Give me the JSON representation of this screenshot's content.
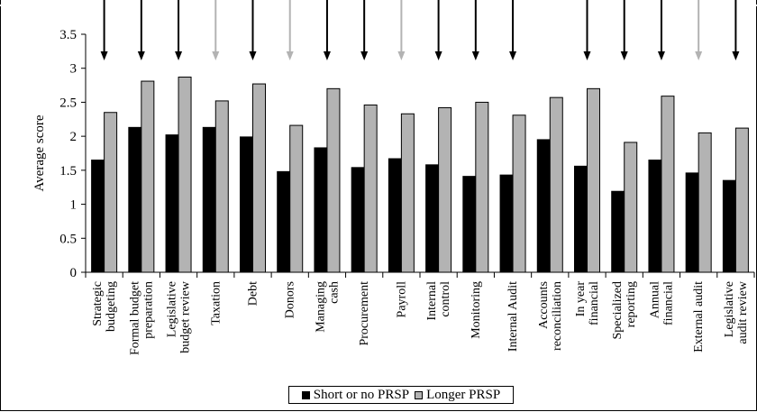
{
  "chart_data": {
    "type": "bar",
    "ylabel": "Average score",
    "xlabel": "",
    "ylim": [
      0,
      3.5
    ],
    "yticks": [
      0,
      0.5,
      1,
      1.5,
      2,
      2.5,
      3,
      3.5
    ],
    "ytick_labels": [
      "0",
      "0.5",
      "1",
      "1.5",
      "2",
      "2.5",
      "3",
      "3.5"
    ],
    "categories": [
      [
        "Strategic",
        "budgeting"
      ],
      [
        "Formal budget",
        "preparation"
      ],
      [
        "Legislative",
        "budget review"
      ],
      [
        "Taxation"
      ],
      [
        "Debt"
      ],
      [
        "Donors"
      ],
      [
        "Managing",
        "cash"
      ],
      [
        "Procurement"
      ],
      [
        "Payroll"
      ],
      [
        "Internal",
        "control"
      ],
      [
        "Monitoring"
      ],
      [
        "Internal Audit"
      ],
      [
        "Accounts",
        "reconciliation"
      ],
      [
        "In year",
        "financial"
      ],
      [
        "Specialized",
        "reporting"
      ],
      [
        "Annual",
        "financial"
      ],
      [
        "External audit"
      ],
      [
        "Legislative",
        "audit review"
      ]
    ],
    "series": [
      {
        "name": "Short or no PRSP",
        "color": "#000000",
        "values": [
          1.65,
          2.13,
          2.02,
          2.13,
          1.99,
          1.48,
          1.83,
          1.54,
          1.67,
          1.58,
          1.41,
          1.43,
          1.95,
          1.56,
          1.19,
          1.65,
          1.46,
          1.35
        ]
      },
      {
        "name": "Longer PRSP",
        "color": "#b3b3b3",
        "values": [
          2.35,
          2.81,
          2.87,
          2.52,
          2.77,
          2.16,
          2.7,
          2.46,
          2.33,
          2.42,
          2.5,
          2.31,
          2.57,
          2.7,
          1.91,
          2.59,
          2.05,
          2.12
        ]
      }
    ],
    "arrows": [
      "black",
      "black",
      "black",
      "gray",
      "black",
      "gray",
      "black",
      "black",
      "gray",
      "black",
      "black",
      "black",
      "none",
      "black",
      "black",
      "black",
      "gray",
      "black"
    ],
    "arrow_colors": {
      "black": "#000000",
      "gray": "#b3b3b3"
    },
    "grid": false,
    "legend_position": "bottom"
  }
}
